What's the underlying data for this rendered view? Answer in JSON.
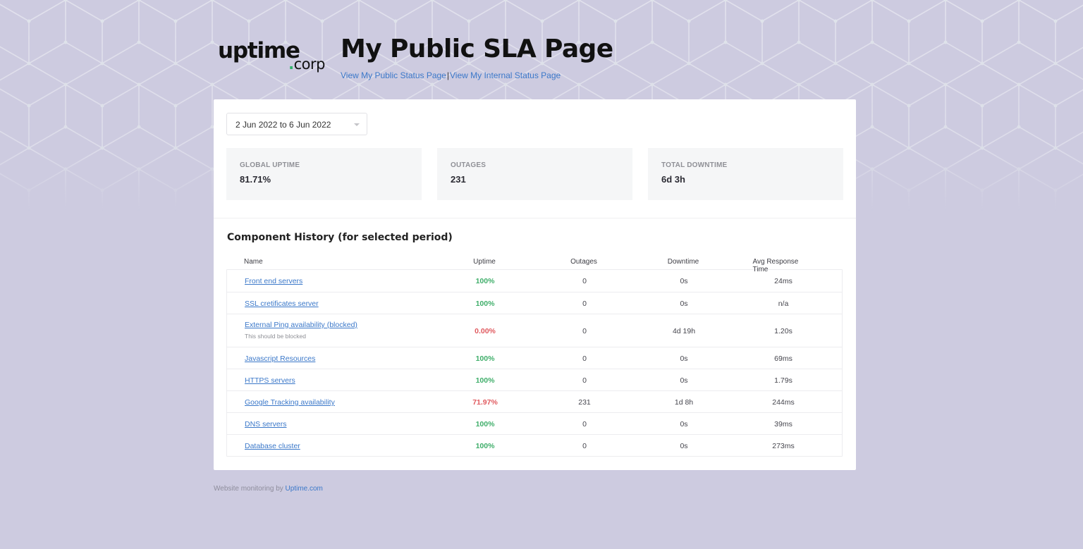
{
  "brand": {
    "logo_word": "uptime",
    "logo_dot": ".",
    "logo_suffix": "corp",
    "accent_color": "#2fb36b"
  },
  "header": {
    "title": "My Public SLA Page",
    "links": [
      {
        "label": "View My Public Status Page"
      },
      {
        "label": "View My Internal Status Page"
      }
    ],
    "separator": "|"
  },
  "filters": {
    "date_range": "2 Jun 2022 to 6 Jun 2022"
  },
  "stats": [
    {
      "label": "GLOBAL UPTIME",
      "value": "81.71%"
    },
    {
      "label": "OUTAGES",
      "value": "231"
    },
    {
      "label": "TOTAL DOWNTIME",
      "value": "6d 3h"
    }
  ],
  "component_history": {
    "title": "Component History (for selected period)",
    "columns": [
      "Name",
      "Uptime",
      "Outages",
      "Downtime",
      "Avg Response Time"
    ],
    "rows": [
      {
        "name": "Front end servers",
        "description": "",
        "uptime": "100%",
        "status": "ok",
        "outages": "0",
        "downtime": "0s",
        "avg_response": "24ms"
      },
      {
        "name": "SSL cretificates server",
        "description": "",
        "uptime": "100%",
        "status": "ok",
        "outages": "0",
        "downtime": "0s",
        "avg_response": "n/a"
      },
      {
        "name": "External Ping availability (blocked)",
        "description": "This should be blocked",
        "uptime": "0.00%",
        "status": "bad",
        "outages": "0",
        "downtime": "4d 19h",
        "avg_response": "1.20s"
      },
      {
        "name": "Javascript Resources",
        "description": "",
        "uptime": "100%",
        "status": "ok",
        "outages": "0",
        "downtime": "0s",
        "avg_response": "69ms"
      },
      {
        "name": "HTTPS servers",
        "description": "",
        "uptime": "100%",
        "status": "ok",
        "outages": "0",
        "downtime": "0s",
        "avg_response": "1.79s"
      },
      {
        "name": "Google Tracking availability",
        "description": "",
        "uptime": "71.97%",
        "status": "bad",
        "outages": "231",
        "downtime": "1d 8h",
        "avg_response": "244ms"
      },
      {
        "name": "DNS servers",
        "description": "",
        "uptime": "100%",
        "status": "ok",
        "outages": "0",
        "downtime": "0s",
        "avg_response": "39ms"
      },
      {
        "name": "Database cluster",
        "description": "",
        "uptime": "100%",
        "status": "ok",
        "outages": "0",
        "downtime": "0s",
        "avg_response": "273ms"
      }
    ]
  },
  "footer": {
    "text": "Website monitoring by",
    "link": "Uptime.com"
  },
  "colors": {
    "background": "#cdcbe0",
    "link": "#3b78c9",
    "ok": "#3fae6a",
    "bad": "#e05a5f"
  }
}
